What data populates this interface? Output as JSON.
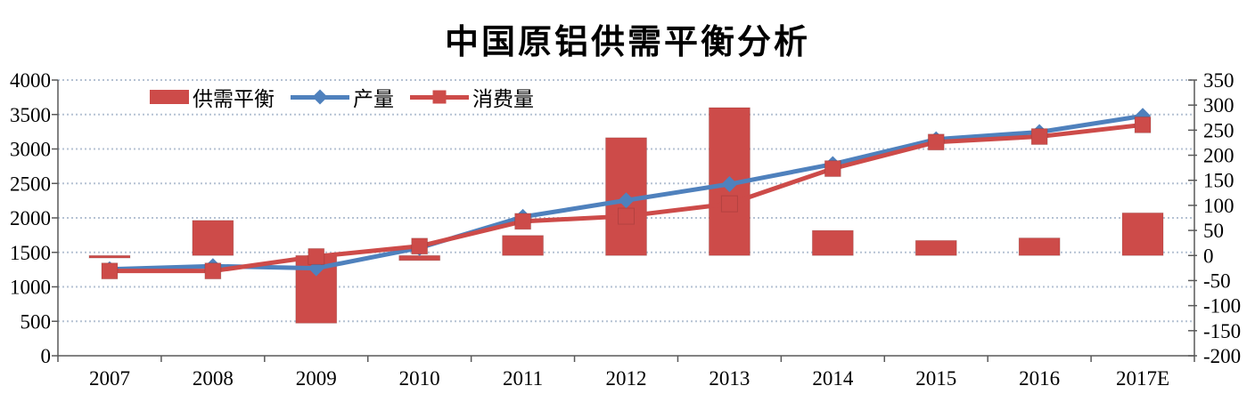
{
  "chart_data": {
    "type": "combo-bar-line",
    "title": "中国原铝供需平衡分析",
    "categories": [
      "2007",
      "2008",
      "2009",
      "2010",
      "2011",
      "2012",
      "2013",
      "2014",
      "2015",
      "2016",
      "2017E"
    ],
    "series": [
      {
        "name": "供需平衡",
        "type": "bar",
        "axis": "right",
        "color": "#cd4b49",
        "values": [
          -5,
          70,
          -135,
          -10,
          40,
          235,
          295,
          50,
          30,
          35,
          85
        ]
      },
      {
        "name": "产量",
        "type": "line",
        "axis": "left",
        "marker": "diamond",
        "color": "#4f81bd",
        "values": [
          1255,
          1300,
          1270,
          1565,
          2015,
          2255,
          2490,
          2780,
          3140,
          3245,
          3480
        ]
      },
      {
        "name": "消费量",
        "type": "line",
        "axis": "left",
        "marker": "square",
        "color": "#cd4b49",
        "values": [
          1230,
          1230,
          1440,
          1590,
          1950,
          2025,
          2205,
          2715,
          3100,
          3180,
          3350
        ]
      }
    ],
    "left_axis": {
      "min": 0,
      "max": 4000,
      "step": 500,
      "ticks": [
        "4000",
        "3500",
        "3000",
        "2500",
        "2000",
        "1500",
        "1000",
        "500",
        "0"
      ]
    },
    "right_axis": {
      "min": -200,
      "max": 350,
      "step": 50,
      "ticks": [
        "350",
        "300",
        "250",
        "200",
        "150",
        "100",
        "50",
        "0",
        "-50",
        "-100",
        "-150",
        "-200"
      ]
    },
    "grid": "horizontal-dotted",
    "legend_position": "top-left-inside"
  },
  "colors": {
    "gridline": "#b5c2d3",
    "axis": "#595959",
    "text": "#000000",
    "background": "#ffffff"
  }
}
